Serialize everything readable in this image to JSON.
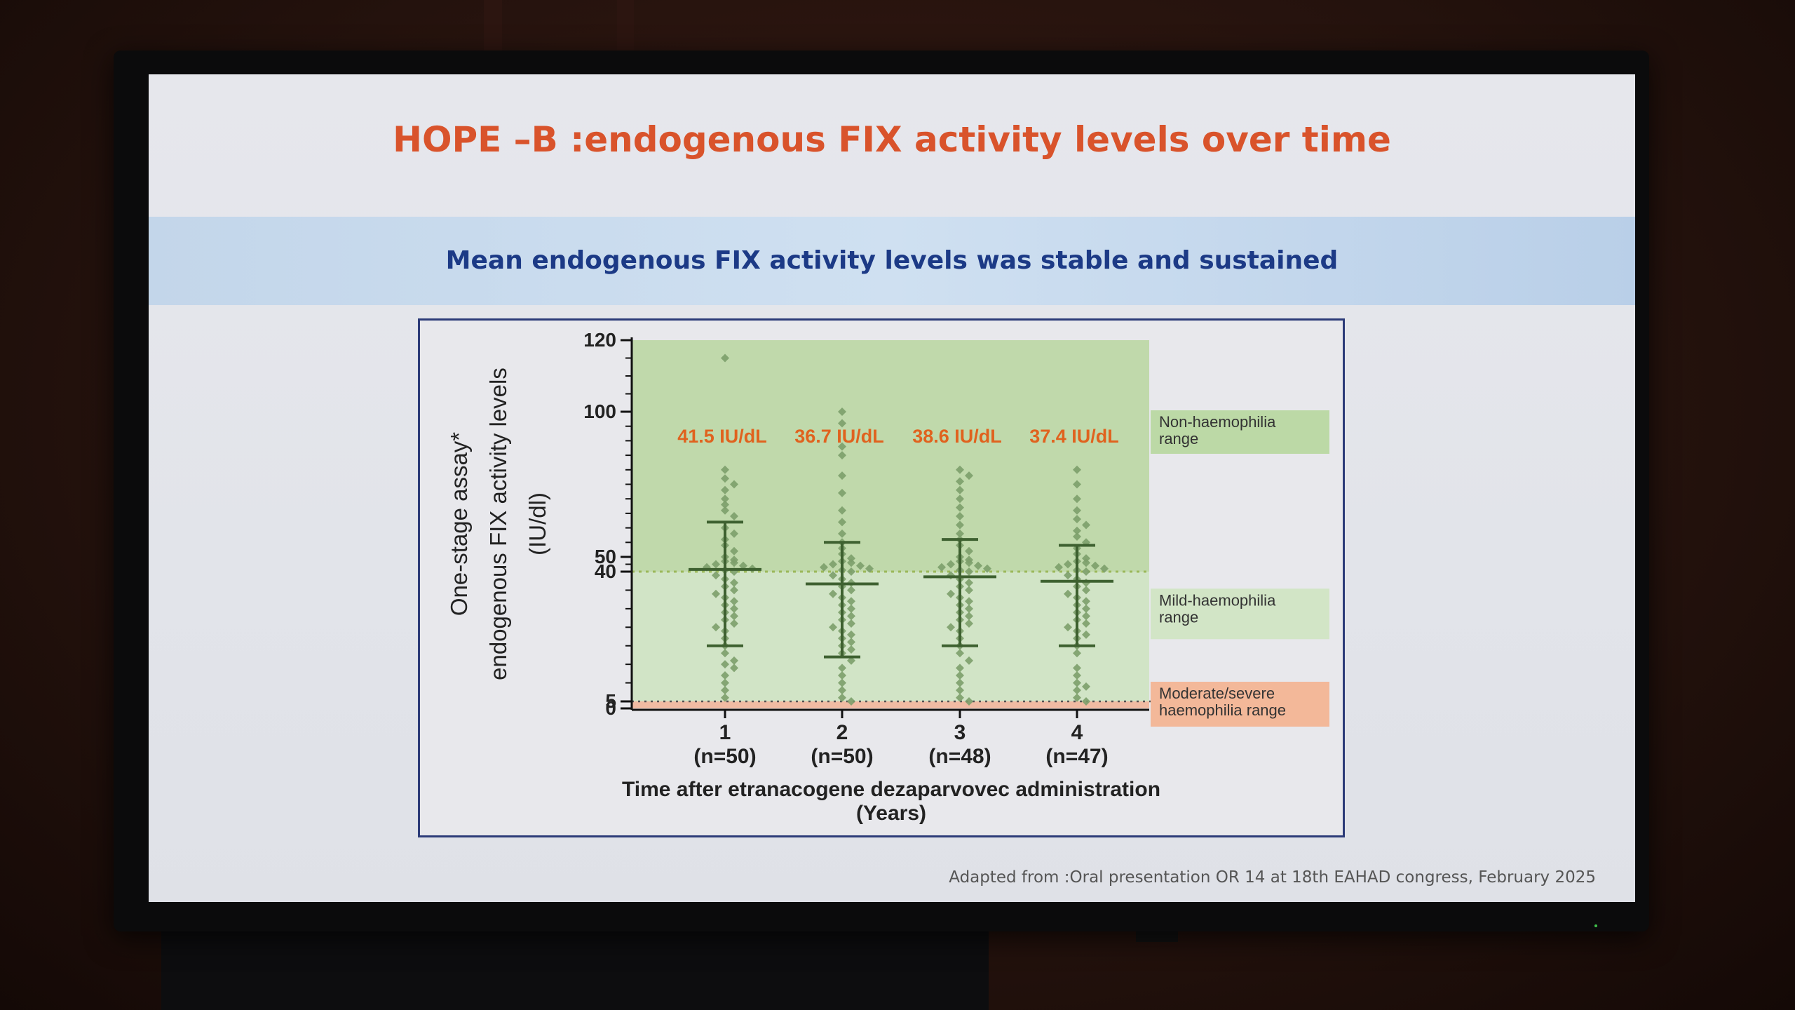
{
  "slide": {
    "title": "HOPE –B :endogenous FIX activity levels over time",
    "subtitle": "Mean endogenous FIX activity levels was stable and sustained",
    "footer": "Adapted from :Oral presentation OR 14 at 18th EAHAD congress, February 2025"
  },
  "colors": {
    "title": "#d9532b",
    "subtitle": "#1c3a86",
    "zone_non_haemophilia": "#b9d6a0",
    "zone_mild": "#cde3c0",
    "zone_moderate_severe": "#f2b396",
    "points": "#7c9f6a",
    "error_bars": "#3e6130",
    "mean_labels": "#e0621e"
  },
  "chart_data": {
    "type": "scatter",
    "ylabel_lines": [
      "One-stage assay*",
      "endogenous FIX activity levels",
      "(IU/dl)"
    ],
    "xlabel_lines": [
      "Time after etranacogene dezaparvovec administration",
      "(Years)"
    ],
    "y_ticks": [
      0,
      5,
      40,
      50,
      100,
      120
    ],
    "ylim": [
      0,
      120
    ],
    "grid": false,
    "categories": [
      {
        "year": "1",
        "n": "(n=50)",
        "mean": 41.5,
        "mean_label": "41.5 IU/dL",
        "error_upper": 62,
        "error_lower": 20,
        "points": [
          115,
          80,
          77,
          75,
          73,
          70,
          68,
          66,
          64,
          60,
          58,
          56,
          54,
          52,
          50,
          48,
          47,
          46,
          45,
          44,
          43,
          42,
          41,
          40,
          39,
          38,
          37,
          36,
          35,
          34,
          33,
          32,
          31,
          30,
          29,
          28,
          27,
          26,
          25,
          24,
          22,
          20,
          18,
          16,
          15,
          14,
          12,
          10,
          8,
          6
        ]
      },
      {
        "year": "2",
        "n": "(n=50)",
        "mean": 36.7,
        "mean_label": "36.7 IU/dL",
        "error_upper": 55,
        "error_lower": 17,
        "points": [
          100,
          96,
          88,
          85,
          78,
          72,
          66,
          62,
          58,
          55,
          53,
          51,
          49,
          47,
          46,
          45,
          44,
          43,
          42,
          41,
          40,
          39,
          38,
          37,
          36,
          35,
          34,
          33,
          32,
          31,
          30,
          29,
          28,
          27,
          26,
          25,
          24,
          23,
          22,
          21,
          20,
          19,
          18,
          16,
          14,
          12,
          10,
          8,
          6,
          5
        ]
      },
      {
        "year": "3",
        "n": "(n=48)",
        "mean": 38.6,
        "mean_label": "38.6 IU/dL",
        "error_upper": 56,
        "error_lower": 20,
        "points": [
          80,
          78,
          76,
          73,
          70,
          67,
          64,
          61,
          58,
          56,
          54,
          52,
          50,
          48,
          47,
          46,
          45,
          44,
          43,
          42,
          41,
          40,
          39,
          38,
          37,
          36,
          35,
          34,
          33,
          32,
          31,
          30,
          29,
          28,
          27,
          26,
          25,
          24,
          22,
          20,
          18,
          16,
          14,
          12,
          10,
          8,
          6,
          5
        ]
      },
      {
        "year": "4",
        "n": "(n=47)",
        "mean": 37.4,
        "mean_label": "37.4 IU/dL",
        "error_upper": 54,
        "error_lower": 20,
        "points": [
          80,
          75,
          70,
          66,
          63,
          61,
          59,
          57,
          55,
          53,
          51,
          49,
          47,
          46,
          45,
          44,
          43,
          42,
          41,
          40,
          39,
          38,
          37,
          36,
          35,
          34,
          33,
          32,
          31,
          30,
          29,
          28,
          27,
          26,
          25,
          24,
          23,
          22,
          20,
          18,
          14,
          12,
          10,
          9,
          8,
          6,
          5
        ]
      }
    ],
    "zones": [
      {
        "name_lines": [
          "Non-haemophilia",
          "range"
        ],
        "from": 40,
        "to": 120
      },
      {
        "name_lines": [
          "Mild-haemophilia",
          "range"
        ],
        "from": 5,
        "to": 40
      },
      {
        "name_lines": [
          "Moderate/severe",
          "haemophilia range"
        ],
        "from": 0,
        "to": 5
      }
    ]
  }
}
